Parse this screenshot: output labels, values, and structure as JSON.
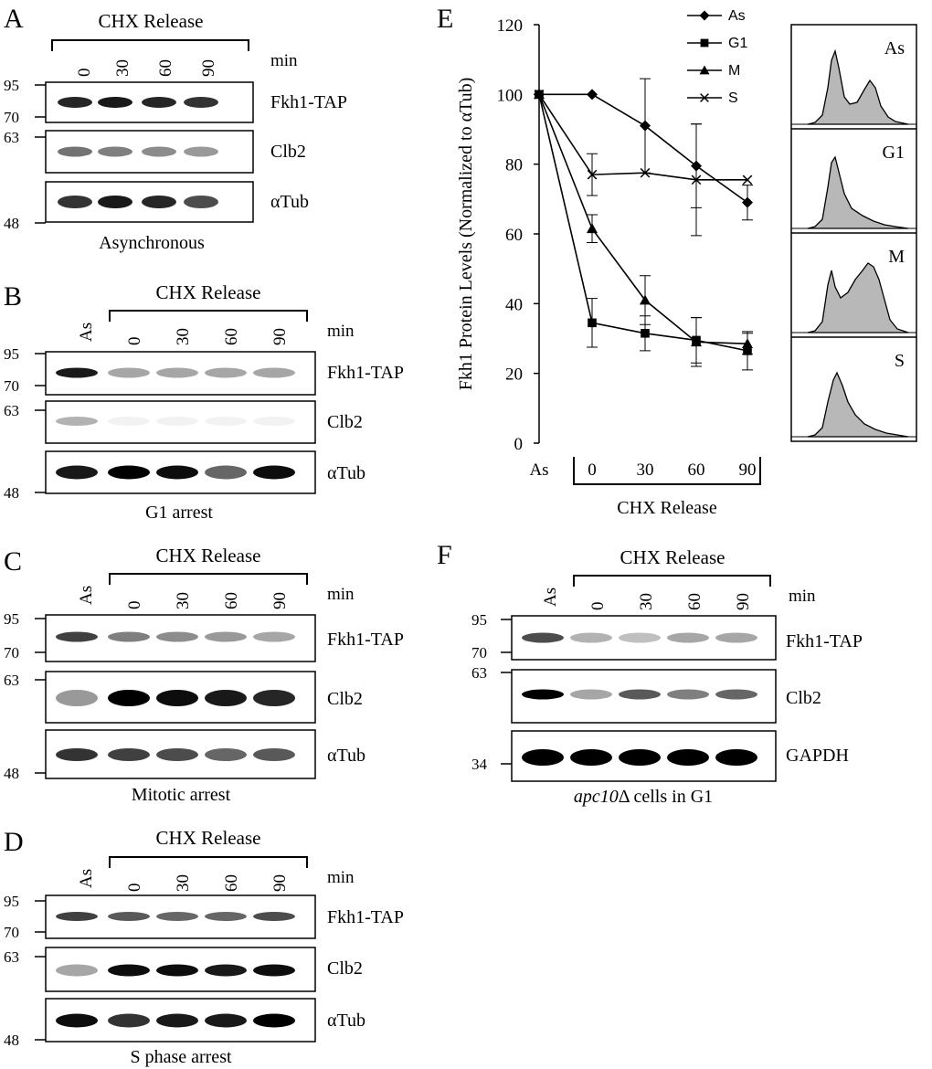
{
  "blots": [
    {
      "letter": "A",
      "title": "CHX Release",
      "unit": "min",
      "lanes": [
        "0",
        "30",
        "60",
        "90"
      ],
      "mw": [
        "95",
        "70",
        "63",
        "48"
      ],
      "rows": [
        "Fkh1-TAP",
        "Clb2",
        "αTub"
      ],
      "caption": "Asynchronous"
    },
    {
      "letter": "B",
      "title": "CHX Release",
      "unit": "min",
      "as_label": "As",
      "lanes": [
        "0",
        "30",
        "60",
        "90"
      ],
      "mw": [
        "95",
        "70",
        "63",
        "48"
      ],
      "rows": [
        "Fkh1-TAP",
        "Clb2",
        "αTub"
      ],
      "caption": "G1 arrest"
    },
    {
      "letter": "C",
      "title": "CHX Release",
      "unit": "min",
      "as_label": "As",
      "lanes": [
        "0",
        "30",
        "60",
        "90"
      ],
      "mw": [
        "95",
        "70",
        "63",
        "48"
      ],
      "rows": [
        "Fkh1-TAP",
        "Clb2",
        "αTub"
      ],
      "caption": "Mitotic arrest"
    },
    {
      "letter": "D",
      "title": "CHX Release",
      "unit": "min",
      "as_label": "As",
      "lanes": [
        "0",
        "30",
        "60",
        "90"
      ],
      "mw": [
        "95",
        "70",
        "63",
        "48"
      ],
      "rows": [
        "Fkh1-TAP",
        "Clb2",
        "αTub"
      ],
      "caption": "S phase arrest"
    },
    {
      "letter": "F",
      "title": "CHX Release",
      "unit": "min",
      "as_label": "As",
      "lanes": [
        "0",
        "30",
        "60",
        "90"
      ],
      "mw": [
        "95",
        "70",
        "63",
        "34"
      ],
      "rows": [
        "Fkh1-TAP",
        "Clb2",
        "GAPDH"
      ],
      "caption_italic": "apc10",
      "caption_rest": "Δ cells in G1"
    }
  ],
  "chart_data": {
    "letter": "E",
    "type": "line",
    "categories": [
      "As",
      "0",
      "30",
      "60",
      "90"
    ],
    "ylabel": "Fkh1 Protein Levels (Normalized to αTub)",
    "xlabel": "CHX Release",
    "ylim": [
      0,
      120
    ],
    "yticks": [
      0,
      20,
      40,
      60,
      80,
      100,
      120
    ],
    "legend_position": "top-right",
    "series": [
      {
        "name": "As",
        "marker": "diamond",
        "values": [
          100,
          100,
          91,
          79.5,
          69
        ],
        "err": [
          0,
          0,
          13.5,
          12,
          5
        ]
      },
      {
        "name": "G1",
        "marker": "square",
        "values": [
          100,
          34.5,
          31.5,
          29.5,
          26.5
        ],
        "err": [
          0,
          7,
          5,
          6.5,
          5.5
        ]
      },
      {
        "name": "M",
        "marker": "triangle",
        "values": [
          100,
          61.5,
          41,
          29,
          28.5
        ],
        "err": [
          0,
          4,
          7,
          7,
          3
        ]
      },
      {
        "name": "S",
        "marker": "x",
        "values": [
          100,
          77,
          77.5,
          75.5,
          75.5
        ],
        "err": [
          0,
          6,
          0,
          16,
          0
        ]
      }
    ]
  },
  "flow": {
    "labels": [
      "As",
      "G1",
      "M",
      "S"
    ],
    "fill": "#b8b8b8"
  }
}
